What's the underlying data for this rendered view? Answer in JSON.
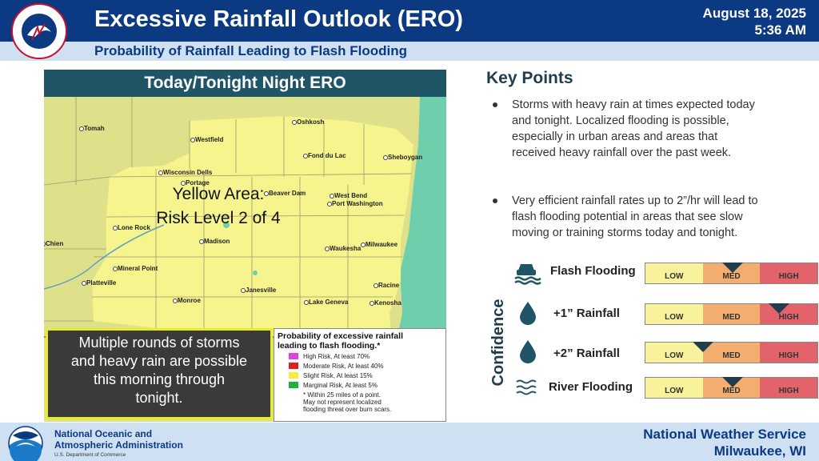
{
  "header": {
    "title": "Excessive Rainfall Outlook (ERO)",
    "subtitle": "Probability of Rainfall Leading to Flash Flooding",
    "date": "August 18, 2025",
    "time": "5:36 AM",
    "logo_text": "NATIONAL WEATHER SERVICE",
    "colors": {
      "bar": "#0b3a82",
      "subbar": "#cfe0f2"
    }
  },
  "map": {
    "title": "Today/Tonight Night ERO",
    "area_label_line1": "Yellow Area:",
    "area_label_line2": "Risk Level 2 of 4",
    "cities": {
      "tomah": "Tomah",
      "oshkosh": "Oshkosh",
      "westfield": "Westfield",
      "fond_du_lac": "Fond du Lac",
      "sheboygan": "Sheboygan",
      "wisconsin_dells": "Wisconsin Dells",
      "portage": "Portage",
      "beaver_dam": "Beaver Dam",
      "west_bend": "West Bend",
      "port_washington": "Port Washington",
      "lone_rock": "Lone Rock",
      "madison": "Madison",
      "chien": "Chien",
      "waukesha": "Waukesha",
      "milwaukee": "Milwaukee",
      "mineral_point": "Mineral Point",
      "platteville": "Platteville",
      "monroe": "Monroe",
      "janesville": "Janesville",
      "racine": "Racine",
      "lake_geneva": "Lake Geneva",
      "kenosha": "Kenosha"
    },
    "storm_message": [
      "Multiple rounds of storms",
      "and heavy rain are possible",
      "this morning through",
      "tonight."
    ],
    "legend": {
      "title_line1": "Probability of excessive rainfall",
      "title_line2": "leading to flash flooding.*",
      "items": [
        {
          "label": "High Risk, At least 70%",
          "color": "#e040e0"
        },
        {
          "label": "Moderate Risk, At least 40%",
          "color": "#e02020"
        },
        {
          "label": "Slight Risk, At least 15%",
          "color": "#f2ee3a"
        },
        {
          "label": "Marginal Risk, At least 5%",
          "color": "#20b040"
        }
      ],
      "note_lines": [
        "* Within 25 miles of a point.",
        "May not represent localized",
        "flooding threat over burn scars."
      ]
    },
    "colors": {
      "yellow_area": "#f6f48c",
      "marginal_area": "#dfe08a",
      "lake": "#6fcfad"
    }
  },
  "key_points": {
    "title": "Key Points",
    "bullets": [
      [
        "Storms with heavy rain at times expected today",
        "and tonight. Localized flooding is possible,",
        "especially in urban areas and areas that",
        "received heavy rainfall over the past week."
      ],
      [
        "Very efficient rainfall rates up to 2”/hr will lead to",
        "flash flooding potential in areas that see slow",
        "moving or training storms today and tonight."
      ]
    ]
  },
  "confidence": {
    "label": "Confidence",
    "levels": [
      "LOW",
      "MED",
      "HIGH"
    ],
    "rows": [
      {
        "name": "Flash Flooding",
        "icon": "car-flood-icon",
        "level_fraction": 0.5
      },
      {
        "name": "+1” Rainfall",
        "icon": "raindrop-icon",
        "level_fraction": 0.77
      },
      {
        "name": "+2” Rainfall",
        "icon": "raindrop-icon",
        "level_fraction": 0.33
      },
      {
        "name": "River Flooding",
        "icon": "waves-icon",
        "level_fraction": 0.5
      }
    ]
  },
  "footer": {
    "noaa_line1": "National Oceanic and",
    "noaa_line2": "Atmospheric Administration",
    "noaa_dept": "U.S. Department of Commerce",
    "noaa_logo_text": "NOAA",
    "office_line1": "National Weather Service",
    "office_line2": "Milwaukee, WI"
  }
}
